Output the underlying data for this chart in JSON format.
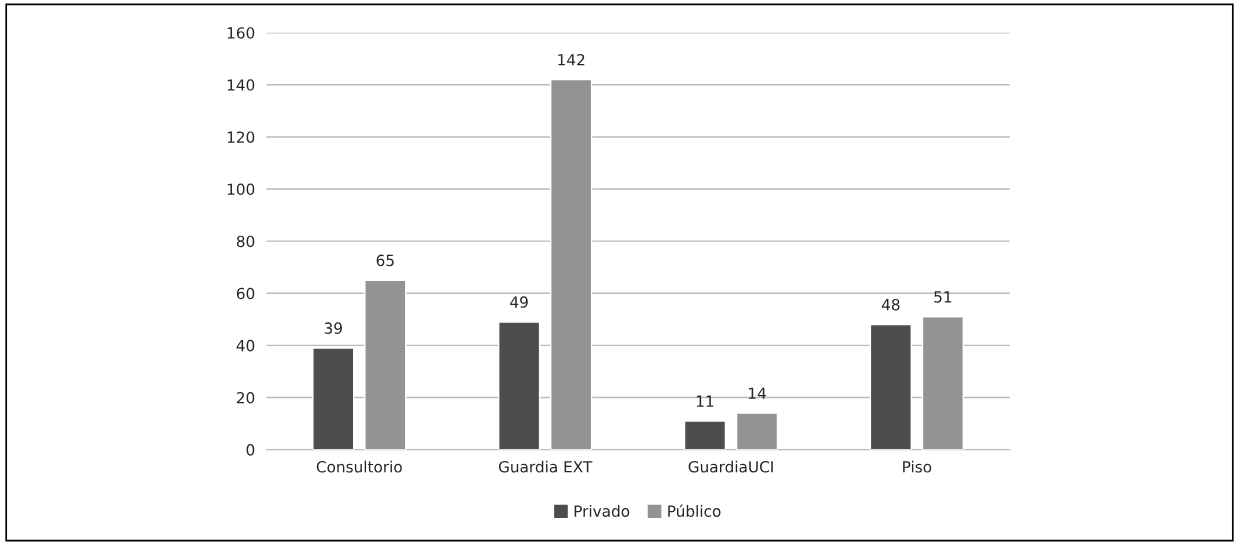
{
  "chart_data": {
    "type": "bar",
    "categories": [
      "Consultorio",
      "Guardia EXT",
      "GuardiaUCI",
      "Piso"
    ],
    "series": [
      {
        "name": "Privado",
        "color": "#4d4d4d",
        "values": [
          39,
          49,
          11,
          48
        ]
      },
      {
        "name": "Público",
        "color": "#939393",
        "values": [
          65,
          142,
          14,
          51
        ]
      }
    ],
    "ylim": [
      0,
      160
    ],
    "yticks": [
      0,
      20,
      40,
      60,
      80,
      100,
      120,
      140,
      160
    ],
    "grid": "y",
    "legend": "bottom",
    "data_labels": true
  }
}
